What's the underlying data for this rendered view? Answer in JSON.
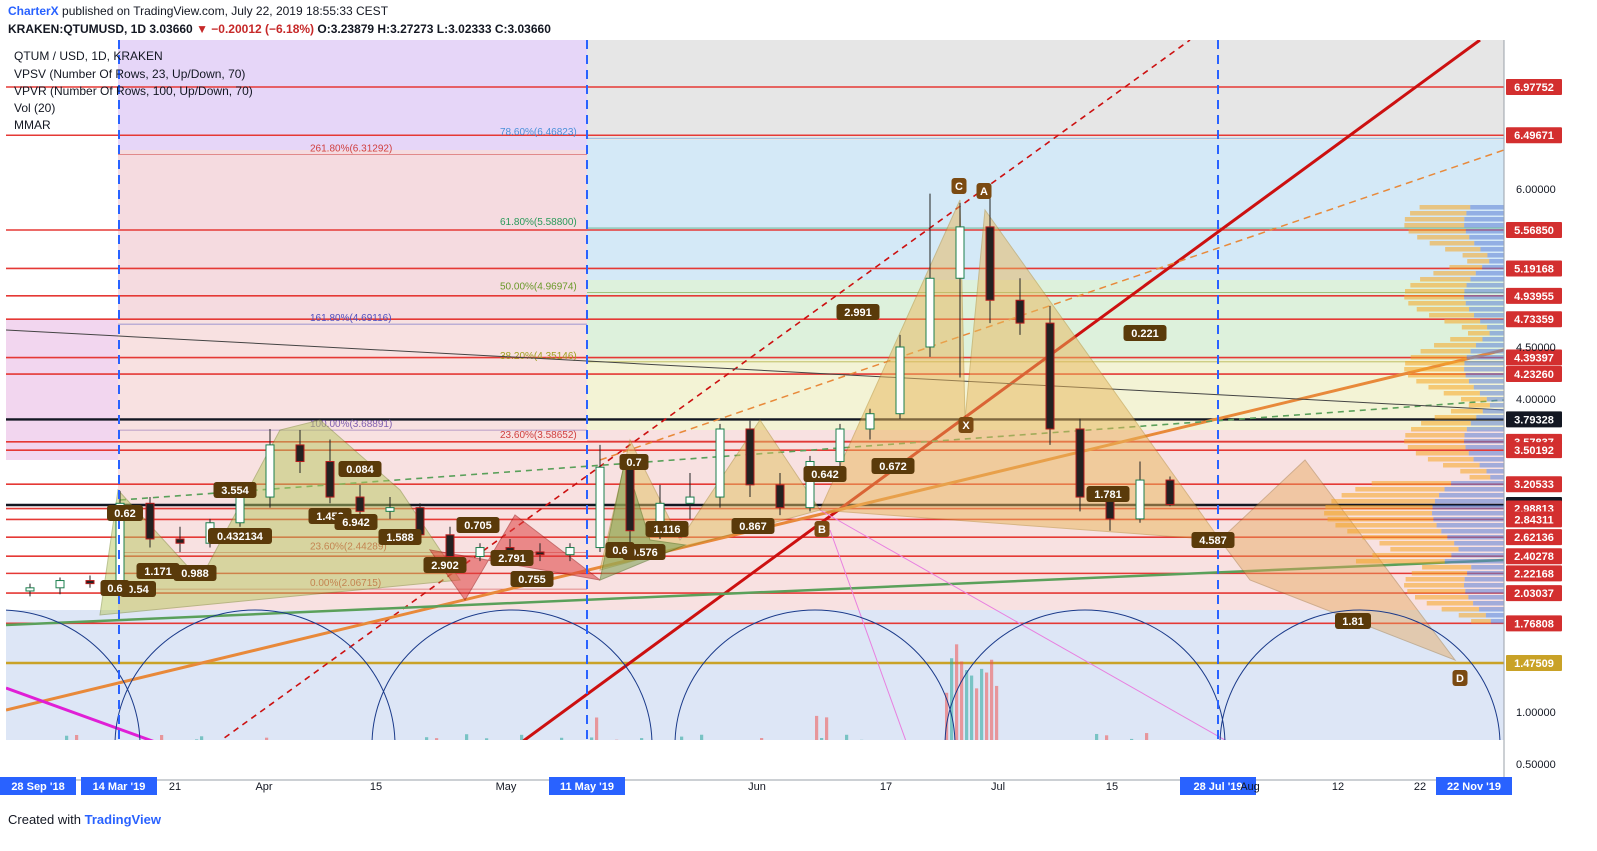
{
  "header": {
    "brand": "CharterX",
    "published": "published on TradingView.com, July 22, 2019 18:55:33 CEST",
    "symbol": "KRAKEN:QTUMUSD, 1D",
    "last": "3.03660",
    "change": "▼ −0.20012 (−6.18%)",
    "ohlc": "O:3.23879 H:3.27273 L:3.02333 C:3.03660"
  },
  "legend": {
    "title": "QTUM / USD, 1D, KRAKEN",
    "indicators": [
      "VPSV (Number Of Rows, 23, Up/Down, 70)",
      "VPVR (Number Of Rows, 100, Up/Down, 70)",
      "Vol (20)",
      "MMAR"
    ]
  },
  "footer": {
    "created_with": "Created with",
    "tradingview": "TradingView"
  },
  "colors": {
    "red_level": "#e53935",
    "black_level": "#131722",
    "gold_level": "#c9a227",
    "up": "#26a69a",
    "down": "#ef5350",
    "axis_label_red": "#d32f2f",
    "axis_label_black": "#131722",
    "time_label_blue": "#2962ff"
  },
  "chart_data": {
    "type": "candlestick",
    "title": "QTUM / USD, 1D, KRAKEN",
    "y_axis": {
      "scale": "log",
      "range": [
        0.45,
        8.5
      ],
      "tick_labels": [
        "6.00000",
        "4.50000",
        "4.00000",
        "1.00000",
        "0.50000"
      ],
      "tick_values": [
        6.0,
        4.5,
        4.0,
        1.0,
        0.5
      ]
    },
    "price_levels": [
      {
        "value": 6.97752,
        "label": "6.97752",
        "kind": "red"
      },
      {
        "value": 6.49671,
        "label": "6.49671",
        "kind": "red"
      },
      {
        "value": 5.5685,
        "label": "5.56850",
        "kind": "red"
      },
      {
        "value": 5.19168,
        "label": "5.19168",
        "kind": "red"
      },
      {
        "value": 4.93955,
        "label": "4.93955",
        "kind": "red"
      },
      {
        "value": 4.73359,
        "label": "4.73359",
        "kind": "red"
      },
      {
        "value": 4.39397,
        "label": "4.39397",
        "kind": "red"
      },
      {
        "value": 4.2326,
        "label": "4.23260",
        "kind": "red"
      },
      {
        "value": 3.79328,
        "label": "3.79328",
        "kind": "black"
      },
      {
        "value": 3.57837,
        "label": "3.57837",
        "kind": "red"
      },
      {
        "value": 3.50192,
        "label": "3.50192",
        "kind": "red"
      },
      {
        "value": 3.20533,
        "label": "3.20533",
        "kind": "red"
      },
      {
        "value": 3.0366,
        "label": "3.03660",
        "kind": "black"
      },
      {
        "value": 2.98813,
        "label": "2.98813",
        "kind": "red"
      },
      {
        "value": 2.84311,
        "label": "2.84311",
        "kind": "red"
      },
      {
        "value": 2.62136,
        "label": "2.62136",
        "kind": "red"
      },
      {
        "value": 2.40278,
        "label": "2.40278",
        "kind": "red"
      },
      {
        "value": 2.22168,
        "label": "2.22168",
        "kind": "red"
      },
      {
        "value": 2.03037,
        "label": "2.03037",
        "kind": "red"
      },
      {
        "value": 1.76808,
        "label": "1.76808",
        "kind": "red"
      },
      {
        "value": 1.47509,
        "label": "1.47509",
        "kind": "gold"
      }
    ],
    "fib_labels": [
      {
        "text": "78.60%(6.46823)",
        "value": 6.46823
      },
      {
        "text": "261.80%(6.31292)",
        "value": 6.31292
      },
      {
        "text": "61.80%(5.58800)",
        "value": 5.588
      },
      {
        "text": "50.00%(4.96974)",
        "value": 4.96974
      },
      {
        "text": "161.80%(4.69116)",
        "value": 4.69116
      },
      {
        "text": "38.20%(4.35146)",
        "value": 4.35146
      },
      {
        "text": "100.00%(3.68891)",
        "value": 3.68891
      },
      {
        "text": "23.60%(3.58652)",
        "value": 3.58652
      },
      {
        "text": "23.60%(2.44289)",
        "value": 2.44289
      },
      {
        "text": "0.00%(2.06715)",
        "value": 2.06715
      }
    ],
    "x_axis": {
      "tick_labels": [
        "28 Sep '18",
        "14 Mar '19",
        "21",
        "Apr",
        "15",
        "May",
        "11 May '19",
        "Jun",
        "17",
        "Jul",
        "15",
        "28 Jul '19",
        "Aug",
        "12",
        "22",
        "22 Nov '19"
      ],
      "highlighted": [
        "28 Sep '18",
        "14 Mar '19",
        "11 May '19",
        "28 Jul '19",
        "22 Nov '19"
      ]
    },
    "pattern_labels": [
      "A",
      "C",
      "X",
      "B",
      "D",
      "0.672",
      "2.991",
      "0.221",
      "1.781",
      "4.587",
      "1.81",
      "0.642",
      "0.867",
      "3.554",
      "0.084",
      "1.452",
      "6.942",
      "1.588",
      "0.705",
      "2.791",
      "2.902",
      "0.755",
      "0.432134",
      "0.988",
      "1.171",
      "0.54",
      "0.6",
      "0.62",
      "0.7",
      "1.116",
      "0.576",
      "0.6"
    ],
    "candles": [
      {
        "x": "1 Mar",
        "o": 2.05,
        "h": 2.12,
        "l": 2.0,
        "c": 2.08
      },
      {
        "x": "5 Mar",
        "o": 2.08,
        "h": 2.18,
        "l": 2.02,
        "c": 2.15
      },
      {
        "x": "9 Mar",
        "o": 2.15,
        "h": 2.2,
        "l": 2.08,
        "c": 2.12
      },
      {
        "x": "14 Mar",
        "o": 2.12,
        "h": 3.15,
        "l": 2.08,
        "c": 3.05
      },
      {
        "x": "17 Mar",
        "o": 3.05,
        "h": 3.1,
        "l": 2.5,
        "c": 2.6
      },
      {
        "x": "21 Mar",
        "o": 2.6,
        "h": 2.75,
        "l": 2.45,
        "c": 2.55
      },
      {
        "x": "25 Mar",
        "o": 2.55,
        "h": 2.85,
        "l": 2.5,
        "c": 2.8
      },
      {
        "x": "29 Mar",
        "o": 2.8,
        "h": 3.2,
        "l": 2.75,
        "c": 3.1
      },
      {
        "x": "2 Apr",
        "o": 3.1,
        "h": 3.7,
        "l": 3.0,
        "c": 3.55
      },
      {
        "x": "6 Apr",
        "o": 3.55,
        "h": 3.69,
        "l": 3.3,
        "c": 3.4
      },
      {
        "x": "10 Apr",
        "o": 3.4,
        "h": 3.6,
        "l": 3.05,
        "c": 3.1
      },
      {
        "x": "14 Apr",
        "o": 3.1,
        "h": 3.2,
        "l": 2.85,
        "c": 2.95
      },
      {
        "x": "18 Apr",
        "o": 2.95,
        "h": 3.1,
        "l": 2.85,
        "c": 3.0
      },
      {
        "x": "22 Apr",
        "o": 3.0,
        "h": 3.05,
        "l": 2.6,
        "c": 2.65
      },
      {
        "x": "26 Apr",
        "o": 2.65,
        "h": 2.75,
        "l": 2.3,
        "c": 2.4
      },
      {
        "x": "30 Apr",
        "o": 2.4,
        "h": 2.55,
        "l": 2.35,
        "c": 2.5
      },
      {
        "x": "4 May",
        "o": 2.5,
        "h": 2.6,
        "l": 2.38,
        "c": 2.45
      },
      {
        "x": "8 May",
        "o": 2.45,
        "h": 2.55,
        "l": 2.35,
        "c": 2.42
      },
      {
        "x": "11 May",
        "o": 2.42,
        "h": 2.55,
        "l": 2.35,
        "c": 2.5
      },
      {
        "x": "14 May",
        "o": 2.5,
        "h": 3.55,
        "l": 2.45,
        "c": 3.35
      },
      {
        "x": "18 May",
        "o": 3.35,
        "h": 3.4,
        "l": 2.55,
        "c": 2.7
      },
      {
        "x": "22 May",
        "o": 2.7,
        "h": 3.2,
        "l": 2.6,
        "c": 3.05
      },
      {
        "x": "26 May",
        "o": 3.05,
        "h": 3.3,
        "l": 2.85,
        "c": 3.1
      },
      {
        "x": "30 May",
        "o": 3.1,
        "h": 3.75,
        "l": 3.0,
        "c": 3.7
      },
      {
        "x": "3 Jun",
        "o": 3.7,
        "h": 3.78,
        "l": 3.1,
        "c": 3.2
      },
      {
        "x": "7 Jun",
        "o": 3.2,
        "h": 3.3,
        "l": 2.9,
        "c": 3.0
      },
      {
        "x": "11 Jun",
        "o": 3.0,
        "h": 3.45,
        "l": 2.95,
        "c": 3.4
      },
      {
        "x": "15 Jun",
        "o": 3.4,
        "h": 3.75,
        "l": 3.35,
        "c": 3.7
      },
      {
        "x": "19 Jun",
        "o": 3.7,
        "h": 3.9,
        "l": 3.6,
        "c": 3.85
      },
      {
        "x": "23 Jun",
        "o": 3.85,
        "h": 4.6,
        "l": 3.8,
        "c": 4.5
      },
      {
        "x": "26 Jun",
        "o": 4.5,
        "h": 5.95,
        "l": 4.4,
        "c": 5.1
      },
      {
        "x": "29 Jun",
        "o": 5.1,
        "h": 5.85,
        "l": 4.2,
        "c": 5.6
      },
      {
        "x": "2 Jul",
        "o": 5.6,
        "h": 5.9,
        "l": 4.7,
        "c": 4.9
      },
      {
        "x": "6 Jul",
        "o": 4.9,
        "h": 5.1,
        "l": 4.6,
        "c": 4.7
      },
      {
        "x": "10 Jul",
        "o": 4.7,
        "h": 4.85,
        "l": 3.55,
        "c": 3.7
      },
      {
        "x": "14 Jul",
        "o": 3.7,
        "h": 3.8,
        "l": 2.95,
        "c": 3.1
      },
      {
        "x": "17 Jul",
        "o": 3.1,
        "h": 3.15,
        "l": 2.7,
        "c": 2.85
      },
      {
        "x": "20 Jul",
        "o": 2.85,
        "h": 3.4,
        "l": 2.8,
        "c": 3.24
      },
      {
        "x": "22 Jul",
        "o": 3.24,
        "h": 3.27,
        "l": 3.02,
        "c": 3.04
      }
    ]
  }
}
